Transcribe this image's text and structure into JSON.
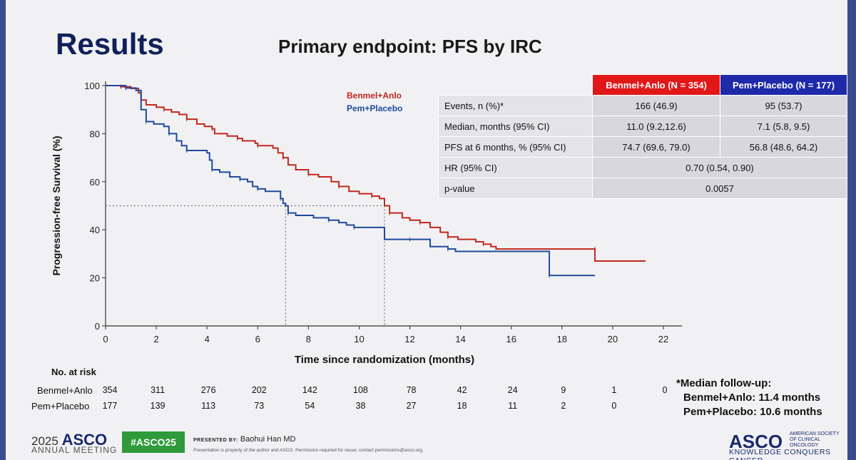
{
  "slide": {
    "title": "Results",
    "subtitle": "Primary endpoint: PFS by IRC"
  },
  "chart_data": {
    "type": "line",
    "xlabel": "Time since randomization (months)",
    "ylabel": "Progression-free Survival (%)",
    "xlim": [
      0,
      22
    ],
    "ylim": [
      0,
      100
    ],
    "xticks": [
      0,
      2,
      4,
      6,
      8,
      10,
      12,
      14,
      16,
      18,
      20,
      22
    ],
    "yticks": [
      0,
      20,
      40,
      60,
      80,
      100
    ],
    "legend": "top-center",
    "median_reference_y": 50,
    "median_reference_x": [
      7.1,
      11.0
    ],
    "series": [
      {
        "name": "Benmel+Anlo",
        "color": "#c0281e",
        "points": [
          [
            0,
            100
          ],
          [
            0.6,
            99.5
          ],
          [
            1.0,
            98.8
          ],
          [
            1.3,
            97
          ],
          [
            1.4,
            94
          ],
          [
            1.6,
            92
          ],
          [
            2.0,
            91
          ],
          [
            2.3,
            90
          ],
          [
            2.6,
            89
          ],
          [
            2.9,
            88
          ],
          [
            3.2,
            86
          ],
          [
            3.6,
            84
          ],
          [
            3.9,
            83
          ],
          [
            4.2,
            82
          ],
          [
            4.3,
            80
          ],
          [
            4.8,
            79
          ],
          [
            5.2,
            78
          ],
          [
            5.4,
            77
          ],
          [
            5.9,
            76
          ],
          [
            6.0,
            75
          ],
          [
            6.6,
            74
          ],
          [
            6.8,
            72
          ],
          [
            7.0,
            70
          ],
          [
            7.2,
            67
          ],
          [
            7.5,
            65
          ],
          [
            8.0,
            63
          ],
          [
            8.4,
            62
          ],
          [
            8.9,
            60
          ],
          [
            9.2,
            58
          ],
          [
            9.6,
            56
          ],
          [
            10.0,
            55
          ],
          [
            10.5,
            54
          ],
          [
            10.8,
            53
          ],
          [
            11.0,
            50
          ],
          [
            11.2,
            47
          ],
          [
            11.7,
            45
          ],
          [
            12.0,
            44
          ],
          [
            12.4,
            43
          ],
          [
            12.8,
            41
          ],
          [
            13.2,
            39
          ],
          [
            13.5,
            37
          ],
          [
            13.9,
            36
          ],
          [
            14.6,
            35
          ],
          [
            14.9,
            34
          ],
          [
            15.2,
            33
          ],
          [
            15.4,
            32
          ],
          [
            19.3,
            32
          ],
          [
            19.3,
            27
          ],
          [
            21.3,
            27
          ]
        ]
      },
      {
        "name": "Pem+Placebo",
        "color": "#1f4a9a",
        "points": [
          [
            0,
            100
          ],
          [
            0.8,
            99
          ],
          [
            1.2,
            98
          ],
          [
            1.4,
            90
          ],
          [
            1.6,
            85
          ],
          [
            1.9,
            84
          ],
          [
            2.3,
            83
          ],
          [
            2.5,
            80
          ],
          [
            2.8,
            77
          ],
          [
            3.0,
            75
          ],
          [
            3.2,
            73
          ],
          [
            4.0,
            72
          ],
          [
            4.1,
            69
          ],
          [
            4.2,
            65
          ],
          [
            4.5,
            64
          ],
          [
            4.9,
            62
          ],
          [
            5.3,
            61
          ],
          [
            5.6,
            60
          ],
          [
            5.8,
            58
          ],
          [
            6.0,
            57
          ],
          [
            6.3,
            56
          ],
          [
            6.9,
            56
          ],
          [
            6.9,
            53
          ],
          [
            7.0,
            51
          ],
          [
            7.1,
            50
          ],
          [
            7.2,
            47
          ],
          [
            7.5,
            46
          ],
          [
            8.2,
            45
          ],
          [
            8.8,
            44
          ],
          [
            9.2,
            43
          ],
          [
            9.5,
            42
          ],
          [
            9.8,
            41
          ],
          [
            10.9,
            41
          ],
          [
            11.0,
            36
          ],
          [
            12.0,
            36
          ],
          [
            12.5,
            36
          ],
          [
            12.8,
            33
          ],
          [
            13.5,
            32
          ],
          [
            13.8,
            31
          ],
          [
            17.5,
            31
          ],
          [
            17.5,
            21
          ],
          [
            19.3,
            21
          ]
        ]
      }
    ]
  },
  "stats_table": {
    "col1_header": "Benmel+Anlo (N = 354)",
    "col2_header": "Pem+Placebo (N = 177)",
    "rows": [
      {
        "label": "Events, n (%)*",
        "v1": "166 (46.9)",
        "v2": "95 (53.7)"
      },
      {
        "label": "Median, months (95% CI)",
        "v1": "11.0 (9.2,12.6)",
        "v2": "7.1 (5.8, 9.5)"
      },
      {
        "label": "PFS at 6 months, % (95% CI)",
        "v1": "74.7 (69.6, 79.0)",
        "v2": "56.8 (48.6, 64.2)"
      }
    ],
    "hr_label": "HR (95% CI)",
    "hr_value": "0.70 (0.54, 0.90)",
    "p_label": "p-value",
    "p_value": "0.0057"
  },
  "risk_table": {
    "heading": "No. at risk",
    "rows": [
      {
        "label": "Benmel+Anlo",
        "counts": [
          "354",
          "311",
          "276",
          "202",
          "142",
          "108",
          "78",
          "42",
          "24",
          "9",
          "1",
          "0"
        ]
      },
      {
        "label": "Pem+Placebo",
        "counts": [
          "177",
          "139",
          "113",
          "73",
          "54",
          "38",
          "27",
          "18",
          "11",
          "2",
          "0"
        ]
      }
    ]
  },
  "followup": {
    "line1": "*Median follow-up:",
    "line2": "Benmel+Anlo: 11.4 months",
    "line3": "Pem+Placebo: 10.6 months"
  },
  "footer": {
    "year": "2025",
    "asco": "ASCO",
    "meeting": "ANNUAL MEETING",
    "hashtag": "#ASCO25",
    "presented_by": "PRESENTED BY:",
    "presenter": "Baohui Han MD",
    "notice": "Presentation is property of the author and ASCO. Permission required for reuse; contact permissions@asco.org.",
    "logo": "ASCO",
    "society": "AMERICAN SOCIETY OF CLINICAL ONCOLOGY",
    "tagline": "KNOWLEDGE CONQUERS CANCER"
  }
}
